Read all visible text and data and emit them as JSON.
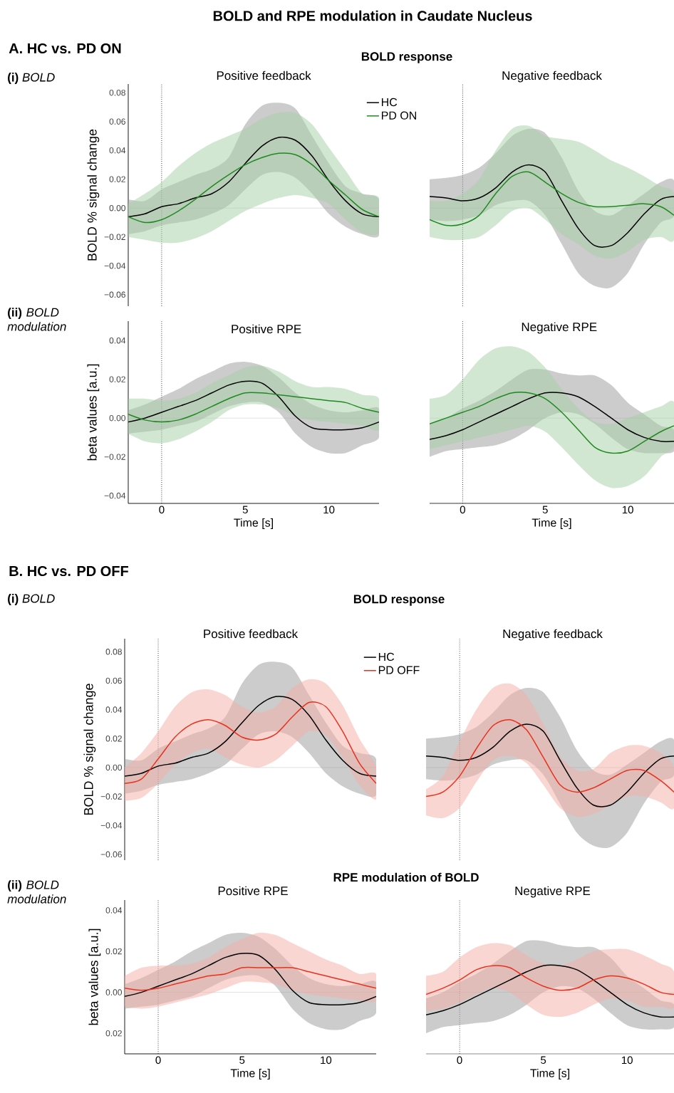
{
  "chart_data": [
    {
      "type": "line",
      "title": "Positive feedback",
      "ylabel": "BOLD % signal change",
      "annotations": [
        "BOLD and RPE modulation in Caudate Nucleus",
        "A. HC vs. PD ON",
        "**(i)** *BOLD*",
        "BOLD response"
      ],
      "legend": "top right",
      "tick_labels": "y",
      "x": [
        -2,
        -1,
        0,
        1,
        2,
        3,
        4,
        5,
        6,
        7,
        8,
        9,
        10,
        11,
        12,
        13
      ],
      "xlim": [
        -2,
        13
      ],
      "ylim": [
        -0.068,
        0.086
      ],
      "yticks": [
        {
          "value": -0.06,
          "label": "−0.06"
        },
        {
          "value": -0.04,
          "label": "−0.04"
        },
        {
          "value": -0.02,
          "label": "−0.02"
        },
        {
          "value": 0,
          "label": "0.00"
        },
        {
          "value": 0.02,
          "label": "0.02"
        },
        {
          "value": 0.04,
          "label": "0.04"
        },
        {
          "value": 0.06,
          "label": "0.06"
        },
        {
          "value": 0.08,
          "label": "0.08"
        }
      ],
      "ref_lines": [
        {
          "axis": "y",
          "value": 0,
          "color": "#dddddd",
          "line_style": "solid"
        },
        {
          "axis": "x",
          "value": 0,
          "color": "#000000",
          "line_style": "dotted"
        }
      ],
      "series": [
        {
          "name": "HC",
          "color": "#000000",
          "values": [
            -0.006,
            -0.004,
            0.001,
            0.003,
            0.007,
            0.01,
            0.018,
            0.031,
            0.043,
            0.049,
            0.047,
            0.036,
            0.019,
            0.005,
            -0.004,
            -0.006
          ],
          "lower": [
            -0.018,
            -0.016,
            -0.012,
            -0.01,
            -0.008,
            -0.004,
            0.002,
            0.013,
            0.023,
            0.025,
            0.021,
            0.01,
            -0.004,
            -0.013,
            -0.018,
            -0.019
          ],
          "upper": [
            0.006,
            0.005,
            0.013,
            0.018,
            0.023,
            0.027,
            0.035,
            0.058,
            0.071,
            0.073,
            0.069,
            0.05,
            0.031,
            0.015,
            0.01,
            0.006
          ]
        },
        {
          "name": "PD ON",
          "color": "#1f8a1f",
          "values": [
            -0.006,
            -0.01,
            -0.008,
            -0.002,
            0.006,
            0.015,
            0.023,
            0.03,
            0.035,
            0.038,
            0.037,
            0.03,
            0.019,
            0.009,
            -0.001,
            -0.006
          ],
          "lower": [
            -0.02,
            -0.022,
            -0.024,
            -0.024,
            -0.021,
            -0.016,
            -0.009,
            -0.002,
            0.003,
            0.007,
            0.009,
            0.007,
            0.003,
            -0.008,
            -0.017,
            -0.017
          ],
          "upper": [
            0.003,
            0.01,
            0.018,
            0.029,
            0.038,
            0.045,
            0.05,
            0.055,
            0.062,
            0.066,
            0.066,
            0.058,
            0.042,
            0.026,
            0.01,
            0.007
          ]
        }
      ]
    },
    {
      "type": "line",
      "title": "Negative feedback",
      "tick_labels": false,
      "x": [
        -2,
        -1,
        0,
        1,
        2,
        3,
        4,
        5,
        6,
        7,
        8,
        9,
        10,
        11,
        12,
        12.8
      ],
      "xlim": [
        -2,
        12.8
      ],
      "ylim": [
        -0.068,
        0.086
      ],
      "ref_lines": [
        {
          "axis": "y",
          "value": 0,
          "color": "#dddddd",
          "line_style": "solid"
        },
        {
          "axis": "x",
          "value": 0,
          "color": "#000000",
          "line_style": "dotted"
        }
      ],
      "series": [
        {
          "color": "#000000",
          "values": [
            0.008,
            0.007,
            0.005,
            0.007,
            0.014,
            0.025,
            0.03,
            0.025,
            0.005,
            -0.014,
            -0.026,
            -0.026,
            -0.017,
            -0.004,
            0.006,
            0.008
          ],
          "lower": [
            -0.008,
            -0.009,
            -0.008,
            -0.005,
            0.002,
            0.005,
            0.005,
            -0.005,
            -0.025,
            -0.045,
            -0.054,
            -0.055,
            -0.045,
            -0.025,
            -0.01,
            -0.005
          ],
          "upper": [
            0.02,
            0.021,
            0.023,
            0.028,
            0.038,
            0.05,
            0.055,
            0.052,
            0.035,
            0.012,
            -0.002,
            -0.005,
            0.002,
            0.01,
            0.018,
            0.019
          ]
        },
        {
          "color": "#1f8a1f",
          "values": [
            -0.008,
            -0.012,
            -0.011,
            -0.005,
            0.01,
            0.022,
            0.025,
            0.018,
            0.01,
            0.004,
            0.001,
            0.001,
            0.002,
            0.003,
            0.001,
            -0.005
          ],
          "lower": [
            -0.02,
            -0.022,
            -0.022,
            -0.02,
            -0.012,
            -0.002,
            0.0,
            -0.008,
            -0.018,
            -0.025,
            -0.033,
            -0.035,
            -0.03,
            -0.022,
            -0.02,
            -0.022
          ],
          "upper": [
            0.005,
            0.005,
            0.01,
            0.02,
            0.04,
            0.055,
            0.057,
            0.05,
            0.048,
            0.046,
            0.04,
            0.033,
            0.028,
            0.022,
            0.015,
            0.01
          ]
        }
      ]
    },
    {
      "type": "line",
      "title": "Positive RPE",
      "xlabel": "Time [s]",
      "ylabel": "beta values [a.u.]",
      "annotations": [
        "**(ii)** *BOLD modulation*"
      ],
      "x": [
        -2,
        -1,
        0,
        1,
        2,
        3,
        4,
        5,
        6,
        7,
        8,
        9,
        10,
        11,
        12,
        13
      ],
      "xlim": [
        -2,
        13
      ],
      "ylim": [
        -0.044,
        0.05
      ],
      "xticks": [
        0,
        5,
        10
      ],
      "yticks": [
        {
          "value": -0.04,
          "label": "−0.04"
        },
        {
          "value": -0.02,
          "label": "−0.02"
        },
        {
          "value": 0,
          "label": "0.00"
        },
        {
          "value": 0.02,
          "label": "0.02"
        },
        {
          "value": 0.04,
          "label": "0.04"
        }
      ],
      "ref_lines": [
        {
          "axis": "y",
          "value": 0,
          "color": "#dddddd",
          "line_style": "solid"
        },
        {
          "axis": "x",
          "value": 0,
          "color": "#000000",
          "line_style": "dotted"
        }
      ],
      "series": [
        {
          "color": "#000000",
          "values": [
            -0.002,
            0.0,
            0.003,
            0.006,
            0.009,
            0.013,
            0.017,
            0.019,
            0.018,
            0.011,
            0.001,
            -0.005,
            -0.006,
            -0.006,
            -0.005,
            -0.002
          ],
          "lower": [
            -0.008,
            -0.007,
            -0.006,
            -0.004,
            -0.002,
            0.002,
            0.006,
            0.008,
            0.008,
            0.003,
            -0.008,
            -0.015,
            -0.018,
            -0.018,
            -0.014,
            -0.01
          ],
          "upper": [
            0.004,
            0.007,
            0.011,
            0.015,
            0.02,
            0.024,
            0.028,
            0.029,
            0.027,
            0.021,
            0.013,
            0.007,
            0.004,
            0.003,
            0.004,
            0.005
          ]
        },
        {
          "color": "#1f8a1f",
          "values": [
            0.002,
            -0.001,
            -0.002,
            -0.001,
            0.002,
            0.006,
            0.01,
            0.013,
            0.013,
            0.012,
            0.011,
            0.01,
            0.009,
            0.008,
            0.005,
            0.003
          ],
          "lower": [
            -0.008,
            -0.012,
            -0.013,
            -0.011,
            -0.007,
            -0.002,
            0.004,
            0.007,
            0.007,
            0.005,
            0.001,
            -0.001,
            -0.002,
            -0.003,
            -0.004,
            -0.006
          ],
          "upper": [
            0.01,
            0.01,
            0.009,
            0.01,
            0.013,
            0.018,
            0.022,
            0.026,
            0.027,
            0.024,
            0.019,
            0.016,
            0.016,
            0.015,
            0.012,
            0.01
          ]
        }
      ]
    },
    {
      "type": "line",
      "title": "Negative RPE",
      "xlabel": "Time [s]",
      "tick_labels": "x",
      "x": [
        -2,
        -1,
        0,
        1,
        2,
        3,
        4,
        5,
        6,
        7,
        8,
        9,
        10,
        11,
        12,
        12.8
      ],
      "xlim": [
        -2,
        12.8
      ],
      "ylim": [
        -0.044,
        0.05
      ],
      "xticks": [
        0,
        5,
        10
      ],
      "ref_lines": [
        {
          "axis": "y",
          "value": 0,
          "color": "#dddddd",
          "line_style": "solid"
        },
        {
          "axis": "x",
          "value": 0,
          "color": "#000000",
          "line_style": "dotted"
        }
      ],
      "series": [
        {
          "color": "#000000",
          "values": [
            -0.011,
            -0.009,
            -0.006,
            -0.002,
            0.002,
            0.006,
            0.01,
            0.013,
            0.013,
            0.011,
            0.006,
            0.0,
            -0.006,
            -0.01,
            -0.012,
            -0.012
          ],
          "lower": [
            -0.02,
            -0.017,
            -0.016,
            -0.015,
            -0.014,
            -0.011,
            -0.006,
            0.0,
            0.003,
            0.002,
            -0.003,
            -0.01,
            -0.016,
            -0.018,
            -0.018,
            -0.017
          ],
          "upper": [
            -0.003,
            0.0,
            0.005,
            0.009,
            0.014,
            0.02,
            0.025,
            0.025,
            0.023,
            0.022,
            0.022,
            0.017,
            0.008,
            0.002,
            -0.004,
            -0.006
          ]
        },
        {
          "color": "#1f8a1f",
          "values": [
            -0.003,
            0.0,
            0.003,
            0.006,
            0.01,
            0.013,
            0.013,
            0.01,
            0.003,
            -0.006,
            -0.015,
            -0.018,
            -0.017,
            -0.012,
            -0.007,
            -0.004
          ],
          "lower": [
            -0.016,
            -0.014,
            -0.012,
            -0.01,
            -0.008,
            -0.006,
            -0.004,
            -0.007,
            -0.015,
            -0.024,
            -0.032,
            -0.036,
            -0.035,
            -0.03,
            -0.02,
            -0.014
          ],
          "upper": [
            0.01,
            0.012,
            0.02,
            0.03,
            0.036,
            0.037,
            0.034,
            0.026,
            0.015,
            0.005,
            -0.002,
            -0.003,
            0.0,
            0.003,
            0.006,
            0.008
          ]
        }
      ]
    },
    {
      "type": "line",
      "title": "Positive feedback",
      "ylabel": "BOLD % signal change",
      "annotations": [
        "B. HC vs. PD OFF",
        "**(i)** *BOLD*",
        "BOLD response"
      ],
      "legend": "top right",
      "tick_labels": "y",
      "x": [
        -2,
        -1,
        0,
        1,
        2,
        3,
        4,
        5,
        6,
        7,
        8,
        9,
        10,
        11,
        12,
        13
      ],
      "xlim": [
        -2,
        13
      ],
      "ylim": [
        -0.064,
        0.089
      ],
      "yticks": [
        {
          "value": -0.06,
          "label": "−0.06"
        },
        {
          "value": -0.04,
          "label": "−0.04"
        },
        {
          "value": -0.02,
          "label": "−0.02"
        },
        {
          "value": 0,
          "label": "0.00"
        },
        {
          "value": 0.02,
          "label": "0.02"
        },
        {
          "value": 0.04,
          "label": "0.04"
        },
        {
          "value": 0.06,
          "label": "0.06"
        },
        {
          "value": 0.08,
          "label": "0.08"
        }
      ],
      "ref_lines": [
        {
          "axis": "y",
          "value": 0,
          "color": "#dddddd",
          "line_style": "solid"
        },
        {
          "axis": "x",
          "value": 0,
          "color": "#000000",
          "line_style": "dotted"
        }
      ],
      "series": [
        {
          "name": "HC",
          "color": "#000000",
          "values": [
            -0.006,
            -0.004,
            0.001,
            0.003,
            0.007,
            0.01,
            0.018,
            0.031,
            0.043,
            0.049,
            0.047,
            0.036,
            0.019,
            0.005,
            -0.004,
            -0.006
          ],
          "lower": [
            -0.018,
            -0.016,
            -0.012,
            -0.01,
            -0.008,
            -0.004,
            0.002,
            0.013,
            0.023,
            0.025,
            0.021,
            0.01,
            -0.004,
            -0.013,
            -0.018,
            -0.019
          ],
          "upper": [
            0.006,
            0.005,
            0.013,
            0.018,
            0.023,
            0.027,
            0.035,
            0.058,
            0.071,
            0.073,
            0.069,
            0.05,
            0.031,
            0.015,
            0.01,
            0.006
          ]
        },
        {
          "name": "PD OFF",
          "color": "#e8321e",
          "values": [
            -0.011,
            -0.008,
            0.006,
            0.021,
            0.03,
            0.033,
            0.029,
            0.021,
            0.019,
            0.023,
            0.035,
            0.045,
            0.042,
            0.025,
            0.003,
            -0.011
          ],
          "lower": [
            -0.023,
            -0.021,
            -0.011,
            0.002,
            0.01,
            0.013,
            0.007,
            0.002,
            0.0,
            0.005,
            0.015,
            0.025,
            0.022,
            0.007,
            -0.012,
            -0.022
          ],
          "upper": [
            0.0,
            0.01,
            0.025,
            0.042,
            0.052,
            0.054,
            0.05,
            0.042,
            0.038,
            0.042,
            0.055,
            0.061,
            0.058,
            0.043,
            0.02,
            0.0
          ]
        }
      ]
    },
    {
      "type": "line",
      "title": "Negative feedback",
      "tick_labels": false,
      "x": [
        -2,
        -1,
        0,
        1,
        2,
        3,
        4,
        5,
        6,
        7,
        8,
        9,
        10,
        11,
        12,
        12.8
      ],
      "xlim": [
        -2,
        12.8
      ],
      "ylim": [
        -0.064,
        0.089
      ],
      "ref_lines": [
        {
          "axis": "y",
          "value": 0,
          "color": "#dddddd",
          "line_style": "solid"
        },
        {
          "axis": "x",
          "value": 0,
          "color": "#000000",
          "line_style": "dotted"
        }
      ],
      "series": [
        {
          "color": "#000000",
          "values": [
            0.008,
            0.007,
            0.005,
            0.007,
            0.014,
            0.025,
            0.03,
            0.025,
            0.005,
            -0.014,
            -0.026,
            -0.026,
            -0.017,
            -0.004,
            0.006,
            0.008
          ],
          "lower": [
            -0.008,
            -0.009,
            -0.008,
            -0.005,
            0.002,
            0.005,
            0.005,
            -0.005,
            -0.025,
            -0.045,
            -0.054,
            -0.055,
            -0.045,
            -0.025,
            -0.01,
            -0.005
          ],
          "upper": [
            0.02,
            0.021,
            0.023,
            0.028,
            0.038,
            0.05,
            0.055,
            0.052,
            0.035,
            0.012,
            -0.002,
            -0.005,
            0.002,
            0.01,
            0.018,
            0.019
          ]
        },
        {
          "color": "#e8321e",
          "values": [
            -0.02,
            -0.017,
            -0.006,
            0.013,
            0.029,
            0.033,
            0.026,
            0.007,
            -0.012,
            -0.017,
            -0.014,
            -0.008,
            -0.002,
            -0.002,
            -0.009,
            -0.017
          ],
          "lower": [
            -0.033,
            -0.035,
            -0.028,
            -0.01,
            0.005,
            0.008,
            0.003,
            -0.012,
            -0.028,
            -0.034,
            -0.032,
            -0.026,
            -0.02,
            -0.02,
            -0.024,
            -0.028
          ],
          "upper": [
            -0.015,
            -0.006,
            0.018,
            0.04,
            0.055,
            0.058,
            0.05,
            0.03,
            0.008,
            -0.002,
            -0.001,
            0.01,
            0.015,
            0.015,
            0.01,
            0.0
          ]
        }
      ]
    },
    {
      "type": "line",
      "title": "Positive RPE",
      "xlabel": "Time [s]",
      "ylabel": "beta values [a.u.]",
      "annotations": [
        "**(ii)** *BOLD modulation*",
        "RPE modulation of BOLD"
      ],
      "x": [
        -2,
        -1,
        0,
        1,
        2,
        3,
        4,
        5,
        6,
        7,
        8,
        9,
        10,
        11,
        12,
        13
      ],
      "xlim": [
        -2,
        13
      ],
      "ylim": [
        -0.03,
        0.045
      ],
      "xticks": [
        0,
        5,
        10
      ],
      "yticks": [
        {
          "value": -0.02,
          "label": "0.02"
        },
        {
          "value": 0,
          "label": "0.00"
        },
        {
          "value": 0.02,
          "label": "0.02"
        },
        {
          "value": 0.04,
          "label": "0.04"
        }
      ],
      "ref_lines": [
        {
          "axis": "y",
          "value": 0,
          "color": "#dddddd",
          "line_style": "solid"
        },
        {
          "axis": "x",
          "value": 0,
          "color": "#000000",
          "line_style": "dotted"
        }
      ],
      "series": [
        {
          "color": "#000000",
          "values": [
            -0.002,
            0.0,
            0.003,
            0.006,
            0.009,
            0.013,
            0.017,
            0.019,
            0.018,
            0.011,
            0.001,
            -0.005,
            -0.006,
            -0.006,
            -0.005,
            -0.002
          ],
          "lower": [
            -0.008,
            -0.007,
            -0.006,
            -0.004,
            -0.002,
            0.002,
            0.006,
            0.008,
            0.008,
            0.003,
            -0.008,
            -0.015,
            -0.018,
            -0.018,
            -0.014,
            -0.01
          ],
          "upper": [
            0.004,
            0.007,
            0.011,
            0.015,
            0.02,
            0.024,
            0.028,
            0.029,
            0.027,
            0.021,
            0.013,
            0.007,
            0.004,
            0.003,
            0.004,
            0.005
          ]
        },
        {
          "color": "#e8321e",
          "values": [
            0.002,
            0.001,
            0.002,
            0.004,
            0.006,
            0.008,
            0.009,
            0.012,
            0.012,
            0.012,
            0.012,
            0.01,
            0.008,
            0.006,
            0.004,
            0.002
          ],
          "lower": [
            -0.007,
            -0.008,
            -0.007,
            -0.005,
            -0.003,
            -0.001,
            0.002,
            0.005,
            0.005,
            0.004,
            0.001,
            -0.001,
            -0.002,
            -0.003,
            -0.004,
            -0.004
          ],
          "upper": [
            0.008,
            0.012,
            0.013,
            0.013,
            0.014,
            0.017,
            0.022,
            0.026,
            0.029,
            0.028,
            0.024,
            0.02,
            0.016,
            0.013,
            0.009,
            0.009
          ]
        }
      ]
    },
    {
      "type": "line",
      "title": "Negative RPE",
      "xlabel": "Time [s]",
      "tick_labels": "x",
      "x": [
        -2,
        -1,
        0,
        1,
        2,
        3,
        4,
        5,
        6,
        7,
        8,
        9,
        10,
        11,
        12,
        12.8
      ],
      "xlim": [
        -2,
        12.8
      ],
      "ylim": [
        -0.03,
        0.045
      ],
      "xticks": [
        0,
        5,
        10
      ],
      "ref_lines": [
        {
          "axis": "y",
          "value": 0,
          "color": "#dddddd",
          "line_style": "solid"
        },
        {
          "axis": "x",
          "value": 0,
          "color": "#000000",
          "line_style": "dotted"
        }
      ],
      "series": [
        {
          "color": "#000000",
          "values": [
            -0.011,
            -0.009,
            -0.006,
            -0.002,
            0.002,
            0.006,
            0.01,
            0.013,
            0.013,
            0.011,
            0.006,
            0.0,
            -0.006,
            -0.01,
            -0.012,
            -0.012
          ],
          "lower": [
            -0.02,
            -0.017,
            -0.016,
            -0.015,
            -0.014,
            -0.011,
            -0.006,
            0.0,
            0.003,
            0.002,
            -0.003,
            -0.01,
            -0.016,
            -0.018,
            -0.018,
            -0.017
          ],
          "upper": [
            -0.003,
            0.0,
            0.005,
            0.009,
            0.014,
            0.02,
            0.025,
            0.025,
            0.023,
            0.022,
            0.022,
            0.017,
            0.008,
            0.002,
            -0.004,
            -0.006
          ]
        },
        {
          "color": "#e8321e",
          "values": [
            -0.001,
            0.002,
            0.006,
            0.011,
            0.013,
            0.012,
            0.007,
            0.003,
            0.001,
            0.002,
            0.006,
            0.008,
            0.007,
            0.004,
            0.0,
            -0.001
          ],
          "lower": [
            -0.009,
            -0.008,
            -0.005,
            -0.001,
            0.002,
            0.0,
            -0.006,
            -0.011,
            -0.012,
            -0.01,
            -0.006,
            -0.003,
            -0.004,
            -0.007,
            -0.007,
            -0.007
          ],
          "upper": [
            0.008,
            0.01,
            0.017,
            0.022,
            0.024,
            0.023,
            0.018,
            0.014,
            0.013,
            0.016,
            0.02,
            0.021,
            0.021,
            0.018,
            0.014,
            0.01
          ]
        }
      ]
    }
  ]
}
